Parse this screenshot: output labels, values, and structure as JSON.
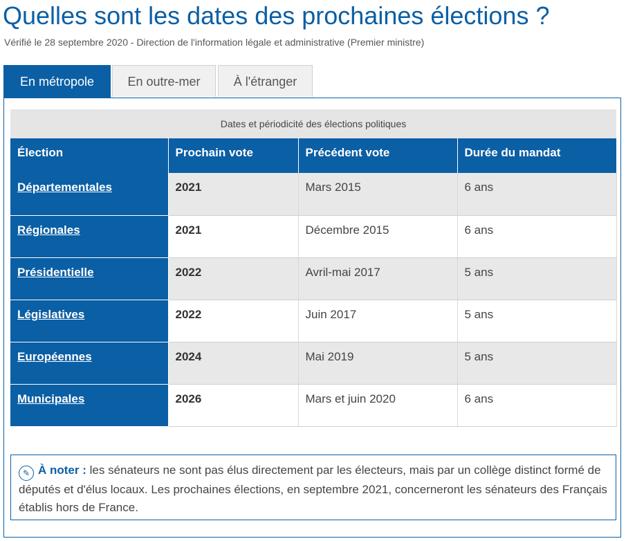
{
  "page": {
    "title": "Quelles sont les dates des prochaines élections ?",
    "verified": "Vérifié le 28 septembre 2020 - Direction de l'information légale et administrative (Premier ministre)"
  },
  "tabs": [
    {
      "label": "En métropole",
      "active": true
    },
    {
      "label": "En outre-mer",
      "active": false
    },
    {
      "label": "À l'étranger",
      "active": false
    }
  ],
  "table": {
    "caption": "Dates et périodicité des élections politiques",
    "headers": [
      "Élection",
      "Prochain vote",
      "Précédent vote",
      "Durée du mandat"
    ],
    "rows": [
      {
        "election": "Départementales",
        "next": "2021",
        "previous": "Mars 2015",
        "duration": "6 ans"
      },
      {
        "election": "Régionales",
        "next": "2021",
        "previous": "Décembre 2015",
        "duration": "6 ans"
      },
      {
        "election": "Présidentielle",
        "next": "2022",
        "previous": "Avril-mai 2017",
        "duration": "5 ans"
      },
      {
        "election": "Législatives",
        "next": "2022",
        "previous": "Juin 2017",
        "duration": "5 ans"
      },
      {
        "election": "Européennes",
        "next": "2024",
        "previous": "Mai 2019",
        "duration": "5 ans"
      },
      {
        "election": "Municipales",
        "next": "2026",
        "previous": "Mars et juin 2020",
        "duration": "6 ans"
      }
    ]
  },
  "note": {
    "icon": "pencil-icon",
    "label": "À noter :",
    "text": " les sénateurs ne sont pas élus directement par les électeurs, mais par un collège distinct formé de députés et d'élus locaux. Les prochaines élections, en septembre 2021, concerneront les sénateurs des Français établis hors de France."
  },
  "colors": {
    "accent": "#0b5fa5",
    "stripe": "#e8e8e8",
    "caption_bg": "#e5e5e5"
  }
}
